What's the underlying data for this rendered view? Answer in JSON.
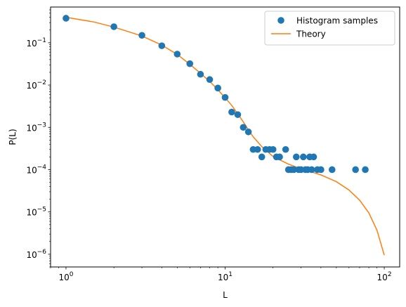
{
  "chart_data": {
    "type": "scatter",
    "title": "",
    "xlabel": "L",
    "ylabel": "P(L)",
    "xscale": "log",
    "yscale": "log",
    "xlim": [
      0.8,
      125
    ],
    "ylim": [
      5e-07,
      0.7
    ],
    "x_ticks": [
      {
        "value": 1,
        "mantissa": "10",
        "exp": "0"
      },
      {
        "value": 10,
        "mantissa": "10",
        "exp": "1"
      },
      {
        "value": 100,
        "mantissa": "10",
        "exp": "2"
      }
    ],
    "y_ticks": [
      {
        "value": 1e-06,
        "mantissa": "10",
        "exp": "−6"
      },
      {
        "value": 1e-05,
        "mantissa": "10",
        "exp": "−5"
      },
      {
        "value": 0.0001,
        "mantissa": "10",
        "exp": "−4"
      },
      {
        "value": 0.001,
        "mantissa": "10",
        "exp": "−3"
      },
      {
        "value": 0.01,
        "mantissa": "10",
        "exp": "−2"
      },
      {
        "value": 0.1,
        "mantissa": "10",
        "exp": "−1"
      }
    ],
    "grid": false,
    "legend": {
      "placement": "top-right",
      "entries": [
        {
          "label": "Histogram samples",
          "marker": "circle",
          "color": "#1f77b4"
        },
        {
          "label": "Theory",
          "marker": "line",
          "color": "#ff7f0e"
        }
      ]
    },
    "series": [
      {
        "name": "Histogram samples",
        "kind": "scatter",
        "color": "#1f77b4",
        "points": [
          [
            1,
            0.38
          ],
          [
            2,
            0.24
          ],
          [
            3,
            0.15
          ],
          [
            4,
            0.085
          ],
          [
            5,
            0.054
          ],
          [
            6,
            0.032
          ],
          [
            7,
            0.018
          ],
          [
            8,
            0.0135
          ],
          [
            9,
            0.0085
          ],
          [
            10,
            0.0051
          ],
          [
            11,
            0.0023
          ],
          [
            12,
            0.002
          ],
          [
            13,
            0.001
          ],
          [
            14,
            0.00078
          ],
          [
            15,
            0.0003
          ],
          [
            16,
            0.0003
          ],
          [
            17,
            0.0002
          ],
          [
            18,
            0.0003
          ],
          [
            19,
            0.0003
          ],
          [
            20,
            0.0003
          ],
          [
            21,
            0.0002
          ],
          [
            22,
            0.0002
          ],
          [
            24,
            0.0003
          ],
          [
            25,
            0.0001
          ],
          [
            26,
            0.0001
          ],
          [
            27,
            0.0001
          ],
          [
            28,
            0.0002
          ],
          [
            29,
            0.0001
          ],
          [
            30,
            0.0001
          ],
          [
            31,
            0.0002
          ],
          [
            32,
            0.0001
          ],
          [
            33,
            0.0001
          ],
          [
            34,
            0.0002
          ],
          [
            35,
            0.0001
          ],
          [
            36,
            0.0002
          ],
          [
            38,
            0.0001
          ],
          [
            40,
            0.0001
          ],
          [
            47,
            0.0001
          ],
          [
            66,
            0.0001
          ],
          [
            76,
            0.0001
          ]
        ]
      },
      {
        "name": "Theory",
        "kind": "line",
        "color": "#ff7f0e",
        "points": [
          [
            1,
            0.4
          ],
          [
            1.5,
            0.31
          ],
          [
            2,
            0.235
          ],
          [
            3,
            0.145
          ],
          [
            4,
            0.088
          ],
          [
            5,
            0.053
          ],
          [
            6,
            0.031
          ],
          [
            7,
            0.019
          ],
          [
            8,
            0.0122
          ],
          [
            9,
            0.0078
          ],
          [
            10,
            0.005
          ],
          [
            11,
            0.0033
          ],
          [
            12,
            0.0021
          ],
          [
            13,
            0.00135
          ],
          [
            14,
            0.00088
          ],
          [
            15,
            0.0006
          ],
          [
            17,
            0.00035
          ],
          [
            20,
            0.000205
          ],
          [
            25,
            0.000135
          ],
          [
            30,
            0.000105
          ],
          [
            35,
            8.8e-05
          ],
          [
            40,
            7.5e-05
          ],
          [
            50,
            5.2e-05
          ],
          [
            60,
            3.3e-05
          ],
          [
            70,
            1.9e-05
          ],
          [
            80,
            9.5e-06
          ],
          [
            90,
            3.7e-06
          ],
          [
            100,
            9.5e-07
          ]
        ]
      }
    ]
  }
}
